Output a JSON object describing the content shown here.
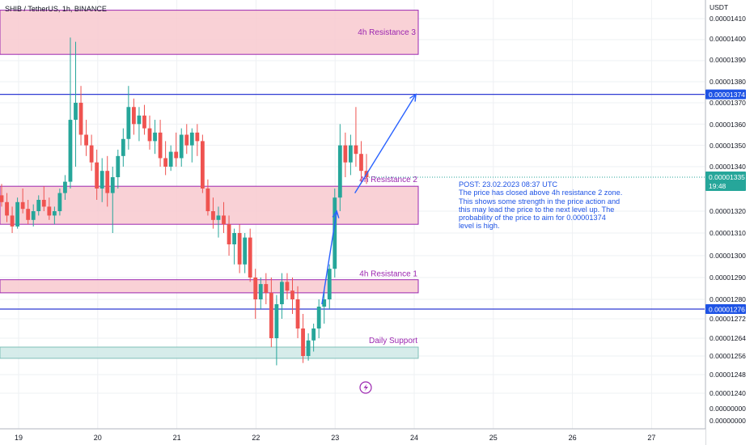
{
  "header": {
    "symbol_label": "SHIB / TetherUS, 1h, BINANCE",
    "axis_unit": "USDT"
  },
  "colors": {
    "up": "#26a69a",
    "down": "#ef5350",
    "zone_fill": "#f8c9cf",
    "zone_border": "#9c27b0",
    "support_fill": "#cfe9e6",
    "level_line": "#2f3bd4",
    "arrow": "#2962ff",
    "note_text": "#1e53e5",
    "price_tag": "#1e53e5"
  },
  "chart_data": {
    "type": "candlestick",
    "title": "SHIB / TetherUS, 1h, BINANCE",
    "y_unit": "USDT",
    "y_tick_labels": [
      "0.00001410",
      "0.00001400",
      "0.00001390",
      "0.00001380",
      "0.00001370",
      "0.00001360",
      "0.00001350",
      "0.00001340",
      "0.00001320",
      "0.00001310",
      "0.00001300",
      "0.00001290",
      "0.00001280",
      "0.00001272",
      "0.00001264",
      "0.00001256",
      "0.00001248",
      "0.00001240",
      "0.00000000",
      "0.00000000"
    ],
    "x_tick_labels": [
      "19",
      "20",
      "21",
      "22",
      "23",
      "24",
      "25",
      "26",
      "27"
    ],
    "zones": [
      {
        "label": "4h Resistance 3",
        "from": 1.393e-05,
        "to": 1.414e-05,
        "kind": "resistance"
      },
      {
        "label": "4h Resistance 2",
        "from": 1.314e-05,
        "to": 1.331e-05,
        "kind": "resistance"
      },
      {
        "label": "4h Resistance 1",
        "from": 1.283e-05,
        "to": 1.289e-05,
        "kind": "resistance"
      },
      {
        "label": "Daily Support",
        "from": 1.255e-05,
        "to": 1.26e-05,
        "kind": "support"
      }
    ],
    "horizontal_levels": [
      {
        "label": "0.00001374",
        "value": 1.374e-05
      },
      {
        "label": "0.00001276",
        "value": 1.276e-05
      }
    ],
    "last_price": {
      "value": "0.00001335",
      "countdown": "19:48"
    },
    "note": {
      "heading": "POST: 23.02.2023 08:37 UTC",
      "lines": [
        "The price has closed above 4h resistance 2 zone.",
        "This shows some strength in the price action and",
        "this may lead the price to the next level up. The",
        "probability of the price to aim for 0.00001374",
        "level is high."
      ]
    },
    "candles": [
      [
        1327,
        1332,
        1322,
        1324
      ],
      [
        1324,
        1328,
        1315,
        1318
      ],
      [
        1318,
        1322,
        1310,
        1313
      ],
      [
        1313,
        1326,
        1312,
        1324
      ],
      [
        1324,
        1330,
        1319,
        1321
      ],
      [
        1321,
        1325,
        1314,
        1316
      ],
      [
        1316,
        1323,
        1313,
        1320
      ],
      [
        1320,
        1327,
        1318,
        1325
      ],
      [
        1325,
        1331,
        1320,
        1322
      ],
      [
        1322,
        1326,
        1316,
        1318
      ],
      [
        1318,
        1322,
        1314,
        1320
      ],
      [
        1320,
        1330,
        1318,
        1328
      ],
      [
        1328,
        1336,
        1325,
        1333
      ],
      [
        1333,
        1401,
        1330,
        1362
      ],
      [
        1362,
        1399,
        1340,
        1370
      ],
      [
        1370,
        1378,
        1350,
        1355
      ],
      [
        1355,
        1362,
        1345,
        1350
      ],
      [
        1350,
        1355,
        1338,
        1342
      ],
      [
        1342,
        1348,
        1325,
        1330
      ],
      [
        1330,
        1344,
        1324,
        1338
      ],
      [
        1338,
        1345,
        1322,
        1328
      ],
      [
        1328,
        1340,
        1310,
        1335
      ],
      [
        1335,
        1348,
        1330,
        1345
      ],
      [
        1345,
        1358,
        1340,
        1353
      ],
      [
        1353,
        1378,
        1348,
        1368
      ],
      [
        1368,
        1372,
        1355,
        1360
      ],
      [
        1360,
        1368,
        1352,
        1364
      ],
      [
        1364,
        1369,
        1355,
        1358
      ],
      [
        1358,
        1364,
        1348,
        1352
      ],
      [
        1352,
        1362,
        1346,
        1356
      ],
      [
        1356,
        1362,
        1340,
        1344
      ],
      [
        1344,
        1352,
        1336,
        1340
      ],
      [
        1340,
        1350,
        1338,
        1347
      ],
      [
        1347,
        1356,
        1340,
        1344
      ],
      [
        1344,
        1358,
        1340,
        1355
      ],
      [
        1355,
        1360,
        1346,
        1350
      ],
      [
        1350,
        1358,
        1342,
        1356
      ],
      [
        1356,
        1360,
        1345,
        1352
      ],
      [
        1352,
        1355,
        1328,
        1330
      ],
      [
        1330,
        1334,
        1318,
        1320
      ],
      [
        1320,
        1326,
        1312,
        1316
      ],
      [
        1316,
        1322,
        1308,
        1318
      ],
      [
        1318,
        1324,
        1310,
        1314
      ],
      [
        1314,
        1318,
        1300,
        1305
      ],
      [
        1305,
        1312,
        1296,
        1310
      ],
      [
        1310,
        1314,
        1292,
        1296
      ],
      [
        1296,
        1310,
        1292,
        1308
      ],
      [
        1308,
        1312,
        1288,
        1290
      ],
      [
        1290,
        1294,
        1272,
        1280
      ],
      [
        1280,
        1290,
        1276,
        1287
      ],
      [
        1287,
        1292,
        1278,
        1283
      ],
      [
        1283,
        1290,
        1260,
        1264
      ],
      [
        1264,
        1282,
        1252,
        1278
      ],
      [
        1278,
        1292,
        1272,
        1288
      ],
      [
        1288,
        1292,
        1280,
        1284
      ],
      [
        1284,
        1290,
        1274,
        1280
      ],
      [
        1280,
        1286,
        1264,
        1268
      ],
      [
        1268,
        1274,
        1253,
        1256
      ],
      [
        1256,
        1266,
        1254,
        1263
      ],
      [
        1263,
        1270,
        1258,
        1268
      ],
      [
        1268,
        1280,
        1264,
        1277
      ],
      [
        1277,
        1284,
        1270,
        1280
      ],
      [
        1280,
        1296,
        1276,
        1294
      ],
      [
        1294,
        1330,
        1290,
        1326
      ],
      [
        1326,
        1360,
        1320,
        1350
      ],
      [
        1350,
        1356,
        1335,
        1342
      ],
      [
        1342,
        1355,
        1336,
        1350
      ],
      [
        1350,
        1368,
        1340,
        1346
      ],
      [
        1346,
        1352,
        1332,
        1338
      ],
      [
        1338,
        1346,
        1332,
        1335
      ]
    ],
    "arrows": [
      {
        "from_date": "22 20:00",
        "from_value": 1.278e-05,
        "to_date": "23 00:30",
        "to_value": 1.32e-05
      },
      {
        "from_date": "23 06:00",
        "from_value": 1.328e-05,
        "to_date": "24 00:30",
        "to_value": 1.374e-05
      }
    ],
    "grid": true
  }
}
